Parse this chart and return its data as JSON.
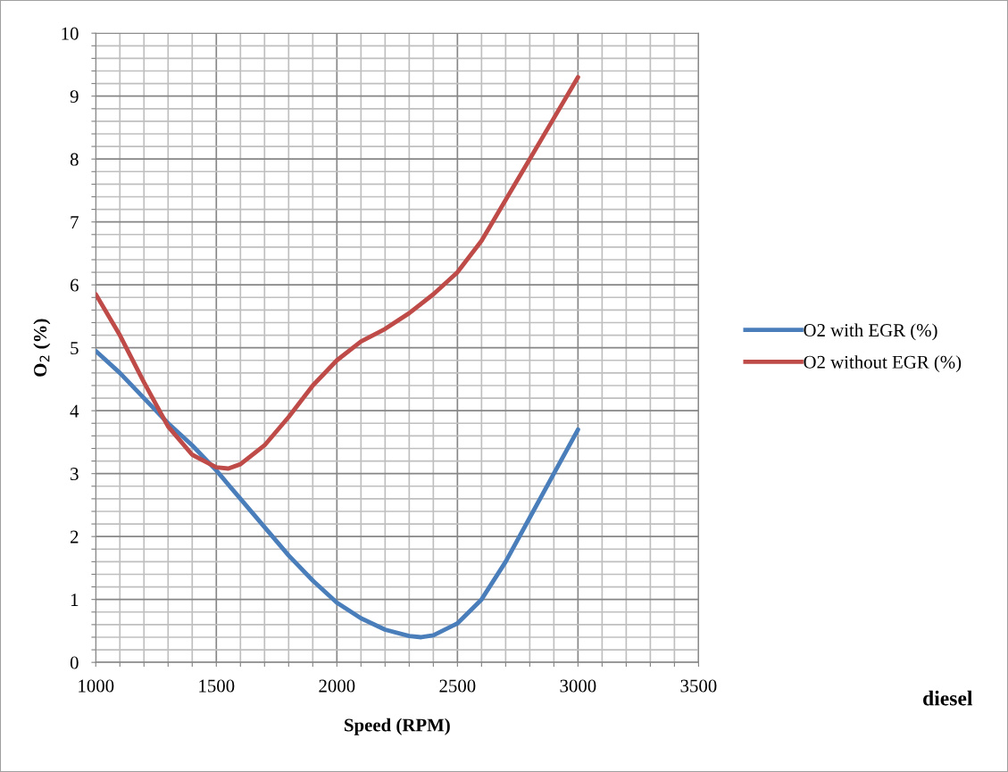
{
  "chart_data": {
    "type": "line",
    "xlabel": "Speed (RPM)",
    "ylabel": "O$_{2}$ (%)",
    "annotations": [
      "diesel"
    ],
    "series": [
      {
        "name": "O2 with EGR (%)",
        "color": "#4a7ebb",
        "x": [
          1000,
          1100,
          1200,
          1300,
          1400,
          1500,
          1600,
          1700,
          1800,
          1900,
          2000,
          2100,
          2200,
          2300,
          2350,
          2400,
          2500,
          2600,
          2700,
          2800,
          2900,
          3000
        ],
        "values": [
          4.95,
          4.6,
          4.2,
          3.8,
          3.45,
          3.05,
          2.6,
          2.15,
          1.7,
          1.3,
          0.95,
          0.7,
          0.52,
          0.42,
          0.4,
          0.43,
          0.62,
          1.0,
          1.6,
          2.3,
          3.0,
          3.7
        ]
      },
      {
        "name": "O2 without EGR (%)",
        "color": "#be4b48",
        "x": [
          1000,
          1100,
          1200,
          1300,
          1400,
          1500,
          1550,
          1600,
          1700,
          1800,
          1900,
          2000,
          2100,
          2200,
          2300,
          2400,
          2500,
          2600,
          2700,
          2800,
          2900,
          3000
        ],
        "values": [
          5.85,
          5.2,
          4.45,
          3.75,
          3.3,
          3.1,
          3.08,
          3.15,
          3.45,
          3.9,
          4.4,
          4.8,
          5.1,
          5.3,
          5.55,
          5.85,
          6.2,
          6.7,
          7.35,
          8.0,
          8.65,
          9.3
        ]
      }
    ],
    "xlim": [
      1000,
      3500
    ],
    "xticks": [
      1000,
      {
        "value": 1100,
        "label": null
      },
      {
        "value": 1200,
        "label": null
      },
      {
        "value": 1300,
        "label": null
      },
      {
        "value": 1400,
        "label": null
      },
      1500,
      {
        "value": 1600,
        "label": null
      },
      {
        "value": 1700,
        "label": null
      },
      {
        "value": 1800,
        "label": null
      },
      {
        "value": 1900,
        "label": null
      },
      2000,
      {
        "value": 2100,
        "label": null
      },
      {
        "value": 2200,
        "label": null
      },
      {
        "value": 2300,
        "label": null
      },
      {
        "value": 2400,
        "label": null
      },
      2500,
      {
        "value": 2600,
        "label": null
      },
      {
        "value": 2700,
        "label": null
      },
      {
        "value": 2800,
        "label": null
      },
      {
        "value": 2900,
        "label": null
      },
      3000,
      {
        "value": 3100,
        "label": null
      },
      {
        "value": 3200,
        "label": null
      },
      {
        "value": 3300,
        "label": null
      },
      {
        "value": 3400,
        "label": null
      },
      3500
    ],
    "ylim": [
      0,
      10
    ],
    "yticks": [
      0,
      {
        "value": 0.2,
        "label": null
      },
      {
        "value": 0.4,
        "label": null
      },
      {
        "value": 0.6,
        "label": null
      },
      {
        "value": 0.8,
        "label": null
      },
      1,
      {
        "value": 1.2,
        "label": null
      },
      {
        "value": 1.4,
        "label": null
      },
      {
        "value": 1.6,
        "label": null
      },
      {
        "value": 1.8,
        "label": null
      },
      2,
      {
        "value": 2.2,
        "label": null
      },
      {
        "value": 2.4,
        "label": null
      },
      {
        "value": 2.6,
        "label": null
      },
      {
        "value": 2.8,
        "label": null
      },
      3,
      {
        "value": 3.2,
        "label": null
      },
      {
        "value": 3.4,
        "label": null
      },
      {
        "value": 3.6,
        "label": null
      },
      {
        "value": 3.8,
        "label": null
      },
      4,
      {
        "value": 4.2,
        "label": null
      },
      {
        "value": 4.4,
        "label": null
      },
      {
        "value": 4.6,
        "label": null
      },
      {
        "value": 4.8,
        "label": null
      },
      5,
      {
        "value": 5.2,
        "label": null
      },
      {
        "value": 5.4,
        "label": null
      },
      {
        "value": 5.6,
        "label": null
      },
      {
        "value": 5.8,
        "label": null
      },
      6,
      {
        "value": 6.2,
        "label": null
      },
      {
        "value": 6.4,
        "label": null
      },
      {
        "value": 6.6,
        "label": null
      },
      {
        "value": 6.8,
        "label": null
      },
      7,
      {
        "value": 7.2,
        "label": null
      },
      {
        "value": 7.4,
        "label": null
      },
      {
        "value": 7.6,
        "label": null
      },
      {
        "value": 7.8,
        "label": null
      },
      8,
      {
        "value": 8.2,
        "label": null
      },
      {
        "value": 8.4,
        "label": null
      },
      {
        "value": 8.6,
        "label": null
      },
      {
        "value": 8.8,
        "label": null
      },
      9,
      {
        "value": 9.2,
        "label": null
      },
      {
        "value": 9.4,
        "label": null
      },
      {
        "value": 9.6,
        "label": null
      },
      {
        "value": 9.8,
        "label": null
      },
      10
    ],
    "grid": true,
    "legend": "right",
    "marker": "none",
    "line_style": "solid"
  }
}
